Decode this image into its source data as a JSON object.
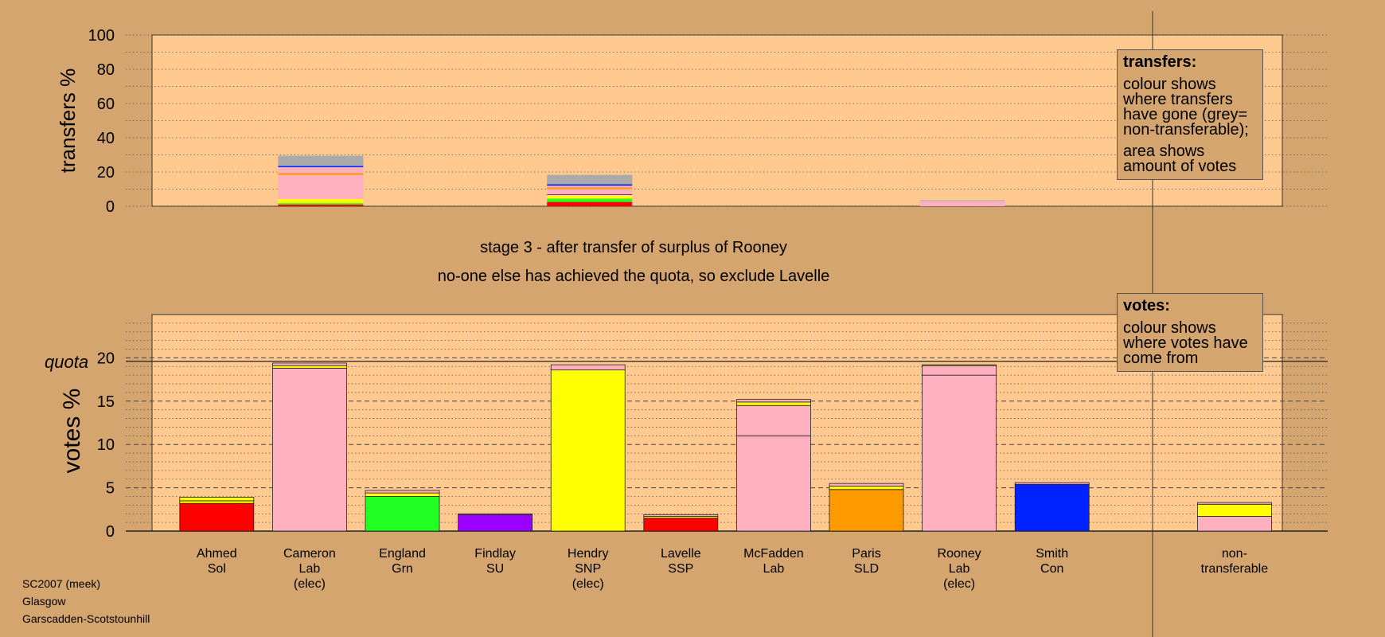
{
  "title_lines": [
    "stage 3 - after transfer of surplus of Rooney",
    "no-one else has achieved the quota, so exclude Lavelle"
  ],
  "caption": [
    "SC2007 (meek)",
    "Glasgow",
    "Garscadden-Scotstounhill"
  ],
  "legend": {
    "transfers": {
      "title": "transfers:",
      "p1": "colour shows where transfers have gone (grey= non-transferable);",
      "p2": "area shows amount of votes"
    },
    "votes": {
      "title": "votes:",
      "p1": "colour shows where votes have come from"
    }
  },
  "colors": {
    "background": "#d4a56f",
    "plot_bg": "#ffc98f",
    "Sol": "#ff0000",
    "Lab": "#ffb0c0",
    "Grn": "#22ff22",
    "SU": "#9900ff",
    "SNP": "#ffff00",
    "SSP": "#ff0000",
    "SLD": "#ff9900",
    "Con": "#0022ff",
    "non_transferable": "#aaaaaa"
  },
  "chart_data": [
    {
      "type": "bar",
      "name": "transfers",
      "ylabel": "transfers %",
      "ylim": [
        0,
        100
      ],
      "yticks": [
        0,
        20,
        40,
        60,
        80,
        100
      ],
      "grid": "dotted",
      "bars": [
        {
          "x_index": 1,
          "segments": [
            {
              "party": "SSP",
              "value": 1
            },
            {
              "party": "Grn",
              "value": 0.8
            },
            {
              "party": "SNP",
              "value": 2.5
            },
            {
              "party": "Lab",
              "value": 14
            },
            {
              "party": "SLD",
              "value": 1
            },
            {
              "party": "Lab",
              "value": 3.5
            },
            {
              "party": "Con",
              "value": 0.7
            },
            {
              "party": "non_transferable",
              "value": 6
            }
          ]
        },
        {
          "x_index": 4,
          "segments": [
            {
              "party": "SSP",
              "value": 2.5
            },
            {
              "party": "Grn",
              "value": 2
            },
            {
              "party": "SNP",
              "value": 2
            },
            {
              "party": "SU",
              "value": 0.5
            },
            {
              "party": "Lab",
              "value": 3
            },
            {
              "party": "SLD",
              "value": 1
            },
            {
              "party": "Lab",
              "value": 1
            },
            {
              "party": "Con",
              "value": 0.8
            },
            {
              "party": "non_transferable",
              "value": 5.5
            }
          ]
        },
        {
          "x_index": 8,
          "segments": [
            {
              "party": "Lab",
              "value": 3
            },
            {
              "party": "non_transferable",
              "value": 0.5
            }
          ]
        }
      ]
    },
    {
      "type": "bar",
      "name": "votes",
      "ylabel": "votes %",
      "ylim": [
        0,
        25
      ],
      "yticks": [
        0,
        5,
        10,
        15,
        20
      ],
      "quota": 19.6,
      "quota_label": "quota",
      "grid": "dotted minor, dashed major",
      "candidates": [
        {
          "name": "Ahmed",
          "party": "Sol",
          "note": "",
          "segments": [
            {
              "party": "Sol",
              "value": 3.2
            },
            {
              "party": "SNP",
              "value": 0.3
            },
            {
              "party": "SNP",
              "value": 0.4
            }
          ]
        },
        {
          "name": "Cameron",
          "party": "Lab",
          "note": "(elec)",
          "segments": [
            {
              "party": "Lab",
              "value": 18.8
            },
            {
              "party": "SNP",
              "value": 0.3
            },
            {
              "party": "Lab",
              "value": 0.3
            }
          ]
        },
        {
          "name": "England",
          "party": "Grn",
          "note": "",
          "segments": [
            {
              "party": "Grn",
              "value": 4.0
            },
            {
              "party": "SNP",
              "value": 0.4
            },
            {
              "party": "Lab",
              "value": 0.3
            }
          ]
        },
        {
          "name": "Findlay",
          "party": "SU",
          "note": "",
          "segments": [
            {
              "party": "SU",
              "value": 1.9
            },
            {
              "party": "Lab",
              "value": 0.1
            }
          ]
        },
        {
          "name": "Hendry",
          "party": "SNP",
          "note": "(elec)",
          "segments": [
            {
              "party": "SNP",
              "value": 18.6
            },
            {
              "party": "Lab",
              "value": 0.6
            }
          ]
        },
        {
          "name": "Lavelle",
          "party": "SSP",
          "note": "",
          "segments": [
            {
              "party": "SSP",
              "value": 1.5
            },
            {
              "party": "SNP",
              "value": 0.2
            },
            {
              "party": "Lab",
              "value": 0.2
            }
          ]
        },
        {
          "name": "McFadden",
          "party": "Lab",
          "note": "",
          "segments": [
            {
              "party": "Lab",
              "value": 11.0
            },
            {
              "party": "Lab",
              "value": 3.5
            },
            {
              "party": "SNP",
              "value": 0.4
            },
            {
              "party": "Lab",
              "value": 0.3
            }
          ]
        },
        {
          "name": "Paris",
          "party": "SLD",
          "note": "",
          "segments": [
            {
              "party": "SLD",
              "value": 4.8
            },
            {
              "party": "SNP",
              "value": 0.4
            },
            {
              "party": "Lab",
              "value": 0.3
            }
          ]
        },
        {
          "name": "Rooney",
          "party": "Lab",
          "note": "(elec)",
          "segments": [
            {
              "party": "Lab",
              "value": 18.0
            },
            {
              "party": "Lab",
              "value": 1.1
            },
            {
              "party": "SNP",
              "value": 0.1
            }
          ]
        },
        {
          "name": "Smith",
          "party": "Con",
          "note": "",
          "segments": [
            {
              "party": "Con",
              "value": 5.4
            },
            {
              "party": "Lab",
              "value": 0.2
            }
          ]
        },
        {
          "name": "non-",
          "party": "transferable",
          "note": "",
          "segments": [
            {
              "party": "Lab",
              "value": 1.7
            },
            {
              "party": "SNP",
              "value": 1.4
            },
            {
              "party": "Lab",
              "value": 0.2
            }
          ]
        }
      ]
    }
  ]
}
